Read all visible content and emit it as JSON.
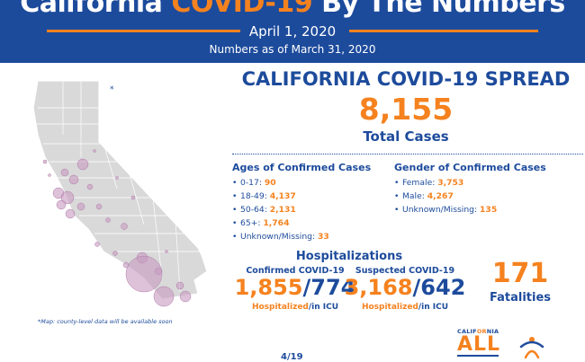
{
  "header": {
    "title_part1": "California ",
    "title_accent": "COVID-19",
    "title_part2": " By The Numbers",
    "date": "April 1, 2020",
    "numbers_as_of": "Numbers as of March 31, 2020"
  },
  "map": {
    "asterisk": "*",
    "note": "*Map: county-level data will be available soon"
  },
  "spread": {
    "title": "CALIFORNIA COVID-19 SPREAD",
    "total": "8,155",
    "total_label": "Total Cases"
  },
  "ages": {
    "title": "Ages of Confirmed Cases",
    "items": [
      {
        "label": "0-17: ",
        "value": "90"
      },
      {
        "label": "18-49: ",
        "value": "4,137"
      },
      {
        "label": "50-64: ",
        "value": "2,131"
      },
      {
        "label": "65+: ",
        "value": "1,764"
      },
      {
        "label": "Unknown/Missing: ",
        "value": "33"
      }
    ]
  },
  "gender": {
    "title": "Gender of Confirmed Cases",
    "items": [
      {
        "label": "Female: ",
        "value": "3,753"
      },
      {
        "label": "Male: ",
        "value": "4,267"
      },
      {
        "label": "Unknown/Missing: ",
        "value": "135"
      }
    ]
  },
  "hospitalizations": {
    "title": "Hospitalizations",
    "confirmed": {
      "label": "Confirmed COVID-19",
      "hospitalized": "1,855",
      "icu": "774"
    },
    "suspected": {
      "label": "Suspected COVID-19",
      "hospitalized": "3,168",
      "icu": "642"
    },
    "hospitalized_label": "Hospitalized",
    "icu_label": "/in ICU",
    "slash": "/"
  },
  "fatalities": {
    "value": "171",
    "label": "Fatalities"
  },
  "branding": {
    "california_a": "CALIF",
    "california_b": "OR",
    "california_c": "NIA",
    "all": "ALL",
    "logo_icon": "people-logo-icon"
  },
  "footer": {
    "fragment": "4/19"
  },
  "colors": {
    "navy": "#1d4b9c",
    "orange": "#f5821f",
    "bubble": "#c79ac0"
  }
}
